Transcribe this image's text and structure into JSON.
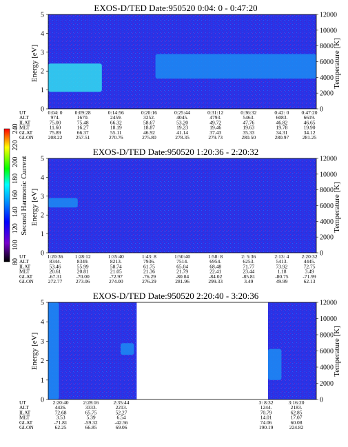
{
  "chart_data": [
    {
      "type": "heatmap",
      "title": "EXOS-D/TED   Date:950520  0:04: 0 - 0:47:20",
      "ylabel": "Energy [eV]",
      "ylabel_right": "Temperature [K]",
      "ylim": [
        0,
        5
      ],
      "yticks": [
        "0",
        "1",
        "2",
        "3",
        "4",
        "5"
      ],
      "ylim_right": [
        0,
        12000
      ],
      "yticks_right": [
        "0",
        "2000",
        "4000",
        "6000",
        "8000",
        "10000",
        "12000"
      ],
      "ephemeris_labels": [
        "UT",
        "ALT",
        "ILAT",
        "MLT",
        "GLAT",
        "GLON"
      ],
      "ephemeris_columns": [
        [
          "0:04: 0",
          "974.",
          "75.00",
          "11.60",
          "75.89",
          "208.22"
        ],
        [
          "0:09:28",
          "1670.",
          "75.48",
          "16.27",
          "66.37",
          "257.51"
        ],
        [
          "0:14:56",
          "2459.",
          "66.32",
          "18.19",
          "55.11",
          "270.76"
        ],
        [
          "0:20:16",
          "3252.",
          "58.67",
          "18.87",
          "46.92",
          "275.80"
        ],
        [
          "0:25:44",
          "4045.",
          "53.20",
          "19.23",
          "41.14",
          "278.35"
        ],
        [
          "0:31:12",
          "4793.",
          "49.72",
          "19.46",
          "37.43",
          "279.73"
        ],
        [
          "0:36:32",
          "5463.",
          "47.76",
          "19.63",
          "35.33",
          "280.50"
        ],
        [
          "0:42: 0",
          "6083.",
          "46.82",
          "19.78",
          "34.31",
          "280.97"
        ],
        [
          "0:47:20",
          "6619.",
          "46.65",
          "19.90",
          "34.12",
          "281.25"
        ]
      ],
      "segments": [
        {
          "x": [
            0,
            1
          ],
          "y": [
            0,
            5
          ]
        }
      ],
      "features": [
        {
          "x": [
            0.0,
            0.2
          ],
          "y": [
            0.9,
            2.4
          ],
          "level": "high"
        },
        {
          "x": [
            0.4,
            1.0
          ],
          "y": [
            1.6,
            2.9
          ],
          "level": "medium"
        }
      ]
    },
    {
      "type": "heatmap",
      "title": "EXOS-D/TED   Date:950520  1:20:36 - 2:20:32",
      "ylabel": "Energy [eV]",
      "ylabel_right": "Temperature [K]",
      "ylim": [
        0,
        5
      ],
      "yticks": [
        "0",
        "1",
        "2",
        "3",
        "4",
        "5"
      ],
      "ylim_right": [
        0,
        12000
      ],
      "yticks_right": [
        "0",
        "2000",
        "4000",
        "6000",
        "8000",
        "10000",
        "12000"
      ],
      "ephemeris_labels": [
        "UT",
        "ALT",
        "ILAT",
        "MLT",
        "GLAT",
        "GLON"
      ],
      "ephemeris_columns": [
        [
          "1:20:36",
          "8344.",
          "53.46",
          "20.61",
          "-67.31",
          "272.77"
        ],
        [
          "1:28:12",
          "8349.",
          "55.99",
          "20.81",
          "-70.00",
          "273.06"
        ],
        [
          "1:35:40",
          "8213.",
          "58.74",
          "21.05",
          "-72.97",
          "274.00"
        ],
        [
          "1:43: 8",
          "7936.",
          "61.75",
          "21.36",
          "-76.29",
          "276.29"
        ],
        [
          "1:50:40",
          "7514.",
          "65.04",
          "21.79",
          "-80.04",
          "281.96"
        ],
        [
          "1:58: 8",
          "6954.",
          "68.48",
          "22.41",
          "-84.02",
          "299.33"
        ],
        [
          "2: 5:36",
          "6253.",
          "71.77",
          "23.44",
          "-85.81",
          "3.49"
        ],
        [
          "2:13: 4",
          "5413.",
          "73.92",
          "1.18",
          "-80.75",
          "49.99"
        ],
        [
          "2:20:32",
          "4445.",
          "72.75",
          "3.49",
          "-71.99",
          "62.13"
        ]
      ],
      "segments": [
        {
          "x": [
            0,
            1
          ],
          "y": [
            0,
            5
          ]
        }
      ],
      "features": [
        {
          "x": [
            0.0,
            0.11
          ],
          "y": [
            2.4,
            2.9
          ],
          "level": "medium"
        }
      ]
    },
    {
      "type": "heatmap",
      "title": "EXOS-D/TED   Date:950520  2:20:40 - 3:20:36",
      "ylabel": "Energy [eV]",
      "ylabel_right": "Temperature [K]",
      "ylim": [
        0,
        5
      ],
      "yticks": [
        "0",
        "1",
        "2",
        "3",
        "4",
        "5"
      ],
      "ylim_right": [
        0,
        12000
      ],
      "yticks_right": [
        "0",
        "2000",
        "4000",
        "6000",
        "8000",
        "10000",
        "12000"
      ],
      "ephemeris_labels": [
        "UT",
        "ALT",
        "ILAT",
        "MLT",
        "GLAT",
        "GLON"
      ],
      "ephemeris_columns": [
        [
          "2:20:40",
          "4426.",
          "72.68",
          "3.53",
          "-71.81",
          "62.25"
        ],
        [
          "2:28:16",
          "3333.",
          "65.75",
          "5.39",
          "-59.32",
          "66.85"
        ],
        [
          "2:35:44",
          "2213.",
          "52.27",
          "6.54",
          "-42.56",
          "69.06"
        ],
        [
          "3: 8:32",
          "1244.",
          "70.79",
          "14.01",
          "74.06",
          "190.19"
        ],
        [
          "3:16:20",
          "2183.",
          "62.85",
          "17.07",
          "60.08",
          "224.82"
        ]
      ],
      "segments": [
        {
          "x": [
            0,
            0.33
          ],
          "y": [
            0,
            5
          ]
        },
        {
          "x": [
            0.82,
            1
          ],
          "y": [
            0,
            5
          ]
        }
      ],
      "features": [
        {
          "x": [
            0.0,
            0.04
          ],
          "y": [
            0.0,
            5.0
          ],
          "level": "medium"
        },
        {
          "x": [
            0.27,
            0.32
          ],
          "y": [
            2.3,
            2.9
          ],
          "level": "medium"
        },
        {
          "x": [
            0.82,
            0.87
          ],
          "y": [
            1.0,
            2.6
          ],
          "level": "medium"
        }
      ]
    }
  ],
  "colorbar": {
    "label": "Second Harmonic Current",
    "ticks": [
      "80",
      "100",
      "120",
      "140",
      "160",
      "180",
      "200",
      "220",
      "240"
    ],
    "colors": [
      "#ff0000",
      "#ffff00",
      "#00ff00",
      "#00ffff",
      "#0088ff",
      "#0000ff",
      "#7700cc",
      "#000000"
    ]
  }
}
